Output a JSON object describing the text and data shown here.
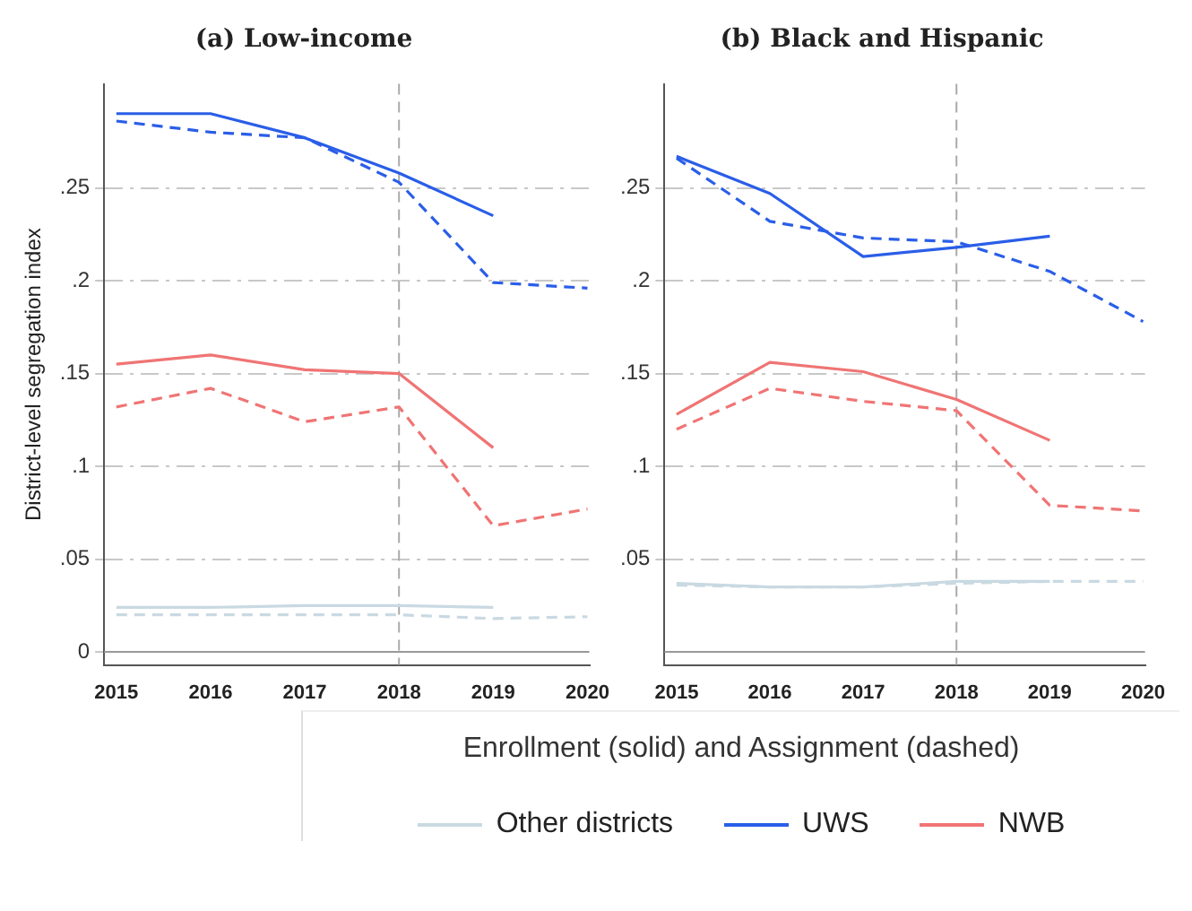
{
  "chart_data": [
    {
      "type": "line",
      "title": "(a) Low-income",
      "ylabel": "District-level segregation index",
      "legend_title": "Enrollment (solid) and Assignment (dashed)",
      "legend": "bottom",
      "grid": "y",
      "x": [
        2015,
        2016,
        2017,
        2018,
        2019,
        2020
      ],
      "xlim": [
        2014.87,
        2020.02
      ],
      "xticks": [
        2015,
        2016,
        2017,
        2018,
        2019,
        2020
      ],
      "ylim": [
        -0.007,
        0.306
      ],
      "yticks": [
        0,
        {
          "value": 0.05,
          "label": ".05"
        },
        {
          "value": 0.1,
          "label": ".1"
        },
        {
          "value": 0.15,
          "label": ".15"
        },
        {
          "value": 0.2,
          "label": ".2"
        },
        {
          "value": 0.25,
          "label": ".25"
        }
      ],
      "ref_lines": [
        {
          "axis": "x",
          "value": 2018,
          "color": "#aaaaaa",
          "line_style": "dashed"
        },
        {
          "axis": "y",
          "value": 0,
          "color": "#999999",
          "line_style": "solid"
        }
      ],
      "series": [
        {
          "name": "Other districts",
          "color": "#c9d9e2",
          "line_style": "solid",
          "values": [
            0.024,
            0.024,
            0.025,
            0.025,
            0.024,
            null
          ]
        },
        {
          "color": "#c9d9e2",
          "line_style": "dashed",
          "values": [
            0.02,
            0.02,
            0.02,
            0.02,
            0.018,
            0.019
          ]
        },
        {
          "name": "UWS",
          "color": "#2a5ee8",
          "line_style": "solid",
          "values": [
            0.29,
            0.29,
            0.277,
            0.258,
            0.235,
            null
          ]
        },
        {
          "color": "#2a5ee8",
          "line_style": "dashed",
          "values": [
            0.286,
            0.28,
            0.277,
            0.253,
            0.199,
            0.196
          ]
        },
        {
          "name": "NWB",
          "color": "#f07474",
          "line_style": "solid",
          "values": [
            0.155,
            0.16,
            0.152,
            0.15,
            0.11,
            null
          ]
        },
        {
          "color": "#f07474",
          "line_style": "dashed",
          "values": [
            0.132,
            0.142,
            0.124,
            0.132,
            0.068,
            0.077
          ]
        }
      ]
    },
    {
      "type": "line",
      "title": "(b) Black and Hispanic",
      "grid": "y",
      "x": [
        2015,
        2016,
        2017,
        2018,
        2019,
        2020
      ],
      "xlim": [
        2014.87,
        2020.02
      ],
      "xticks": [
        2015,
        2016,
        2017,
        2018,
        2019,
        2020
      ],
      "ylim": [
        -0.007,
        0.306
      ],
      "yticks": [
        {
          "value": 0.05,
          "label": ".05"
        },
        {
          "value": 0.1,
          "label": ".1"
        },
        {
          "value": 0.15,
          "label": ".15"
        },
        {
          "value": 0.2,
          "label": ".2"
        },
        {
          "value": 0.25,
          "label": ".25"
        }
      ],
      "ref_lines": [
        {
          "axis": "x",
          "value": 2018,
          "color": "#aaaaaa",
          "line_style": "dashed"
        },
        {
          "axis": "y",
          "value": 0,
          "color": "#999999",
          "line_style": "solid"
        }
      ],
      "series": [
        {
          "color": "#c9d9e2",
          "line_style": "solid",
          "values": [
            0.037,
            0.035,
            0.035,
            0.038,
            0.038,
            null
          ]
        },
        {
          "color": "#c9d9e2",
          "line_style": "dashed",
          "values": [
            0.036,
            0.035,
            0.035,
            0.037,
            0.038,
            0.038
          ]
        },
        {
          "color": "#2a5ee8",
          "line_style": "solid",
          "values": [
            0.267,
            0.247,
            0.213,
            0.218,
            0.224,
            null
          ]
        },
        {
          "color": "#2a5ee8",
          "line_style": "dashed",
          "values": [
            0.266,
            0.232,
            0.223,
            0.221,
            0.205,
            0.178
          ]
        },
        {
          "color": "#f07474",
          "line_style": "solid",
          "values": [
            0.128,
            0.156,
            0.151,
            0.136,
            0.114,
            null
          ]
        },
        {
          "color": "#f07474",
          "line_style": "dashed",
          "values": [
            0.12,
            0.142,
            0.135,
            0.13,
            0.079,
            0.076
          ]
        }
      ]
    }
  ]
}
